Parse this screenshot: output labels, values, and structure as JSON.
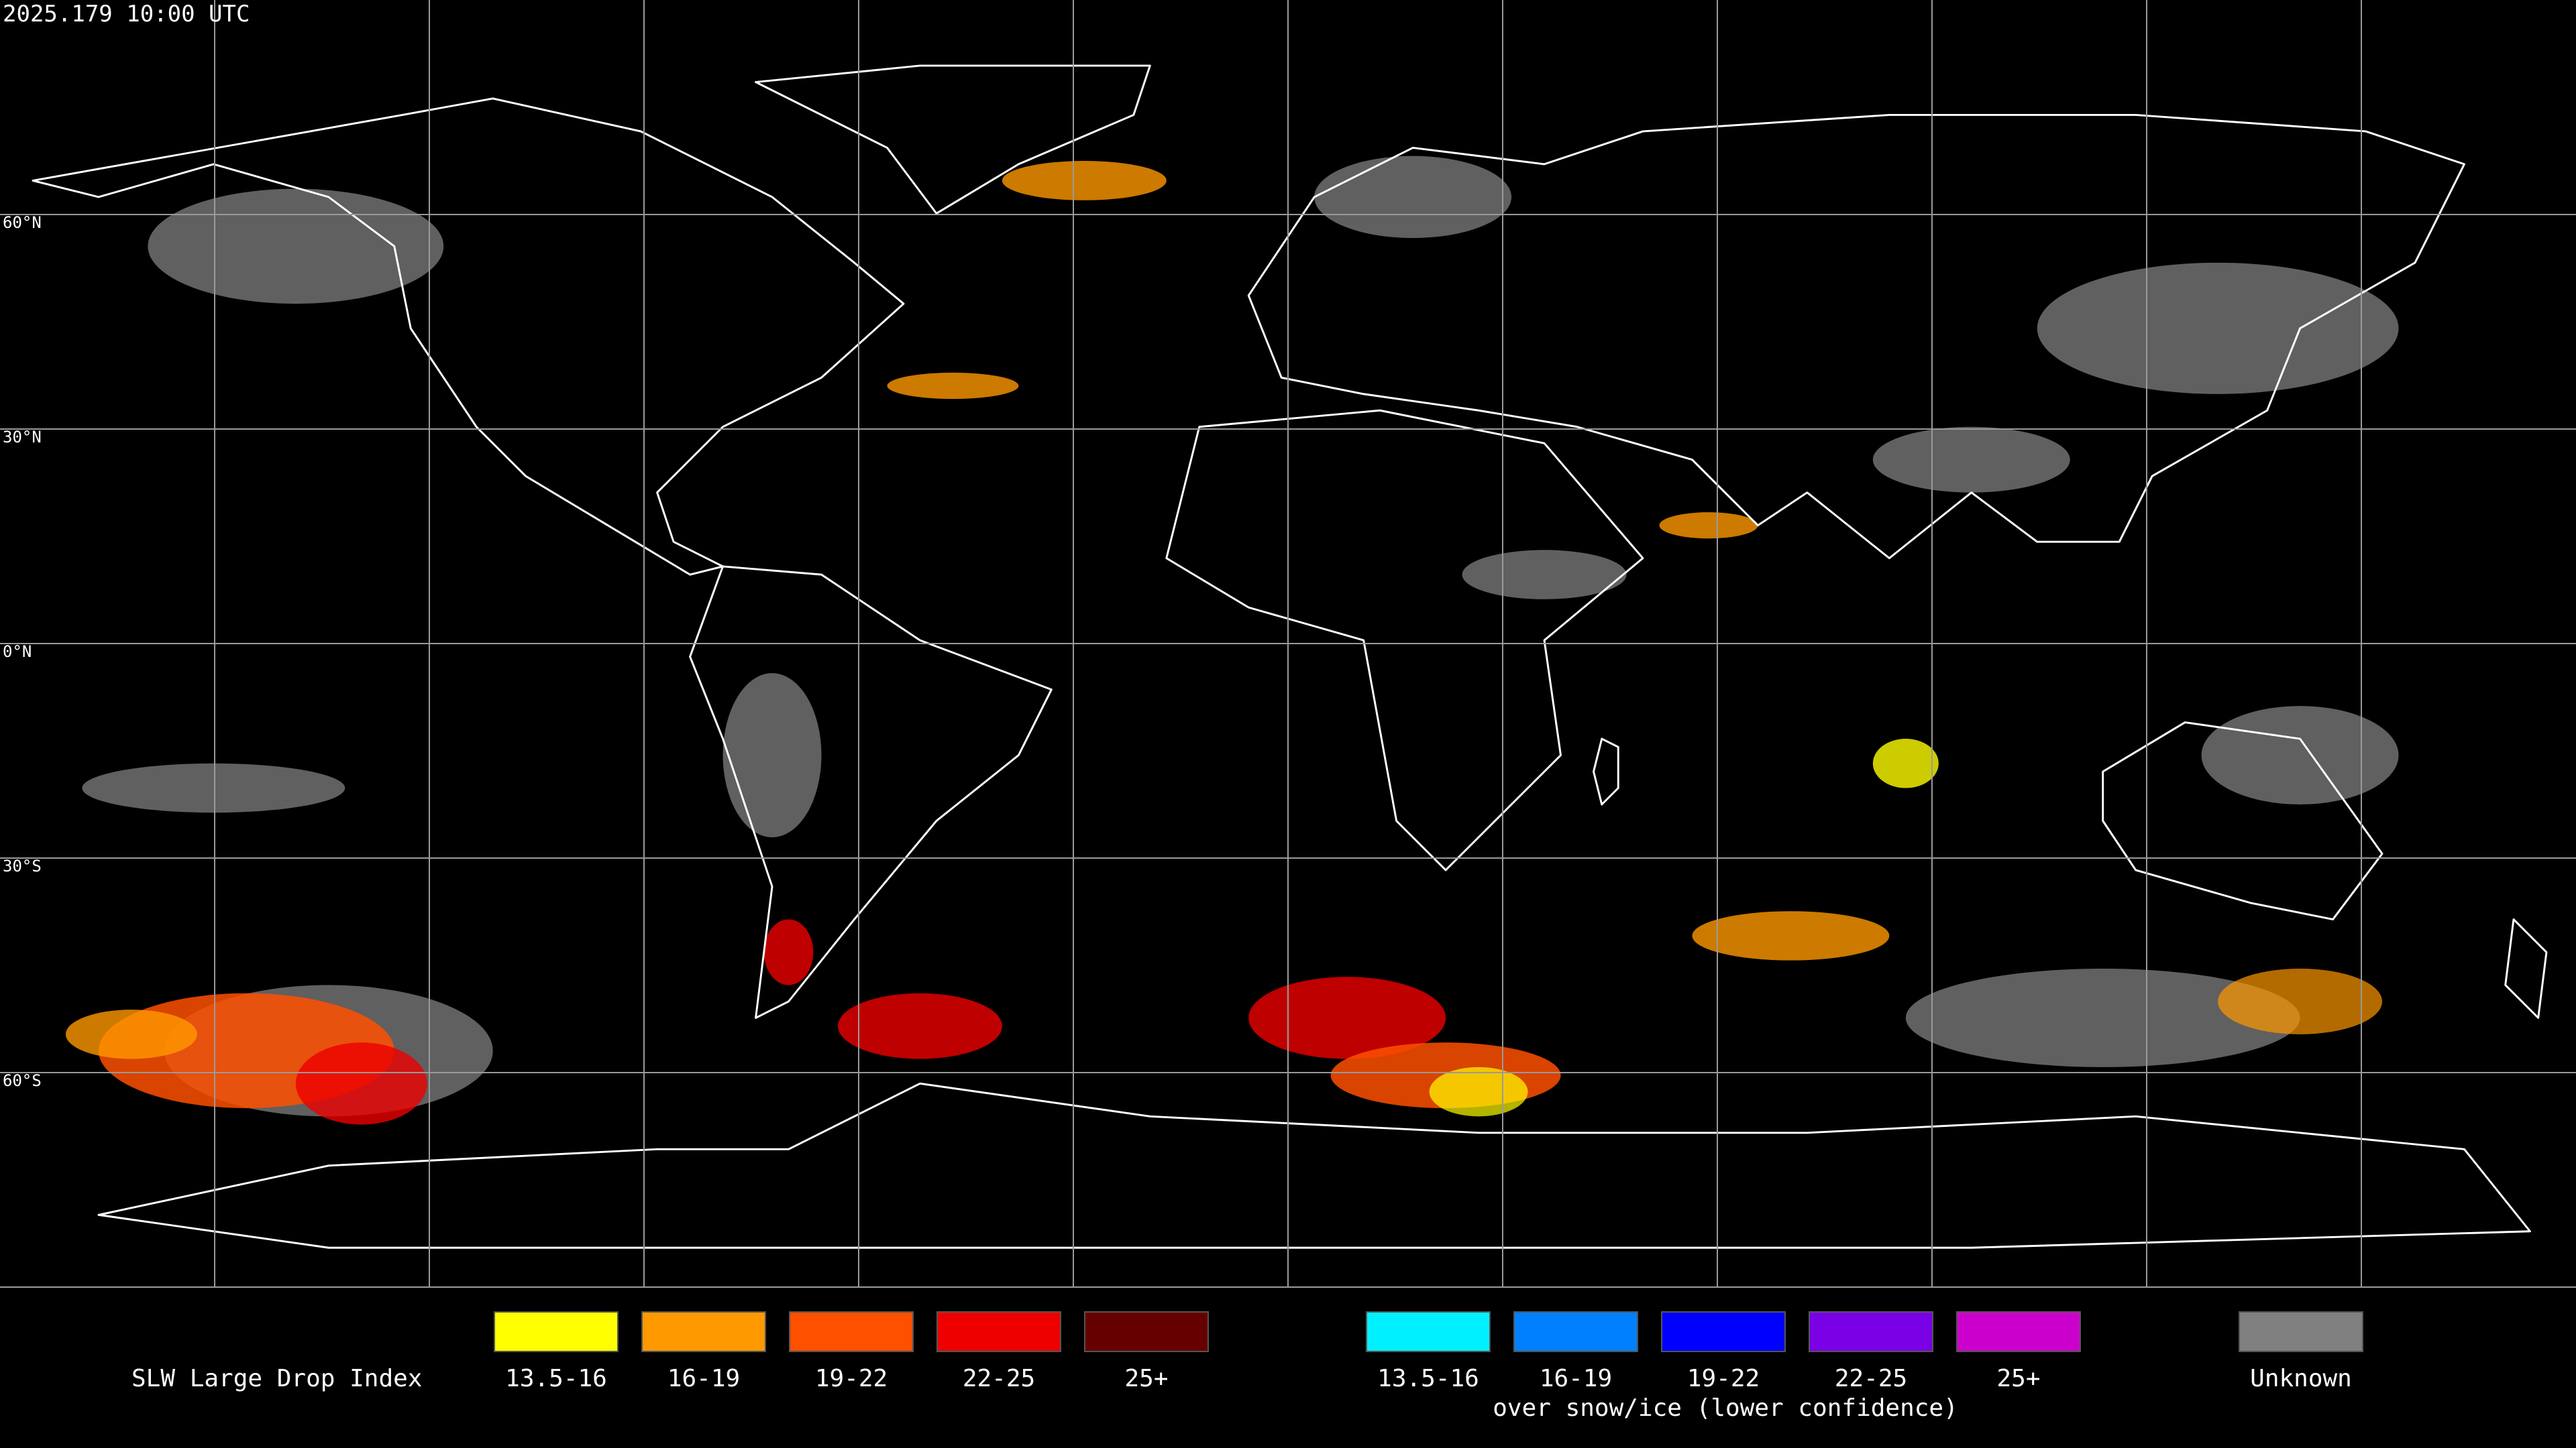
{
  "timestamp": "2025.179 10:00 UTC",
  "latitude_labels": [
    "60°N",
    "30°N",
    "0°N",
    "30°S",
    "60°S"
  ],
  "legend": {
    "title": "SLW Large Drop Index",
    "items": [
      {
        "label": "13.5-16",
        "color": "#ffff00"
      },
      {
        "label": "16-19",
        "color": "#ff9900"
      },
      {
        "label": "19-22",
        "color": "#ff5000"
      },
      {
        "label": "22-25",
        "color": "#ee0000"
      },
      {
        "label": "25+",
        "color": "#660000"
      }
    ],
    "snow_items": [
      {
        "label": "13.5-16",
        "color": "#00f0ff"
      },
      {
        "label": "16-19",
        "color": "#0080ff"
      },
      {
        "label": "19-22",
        "color": "#0000ff"
      },
      {
        "label": "22-25",
        "color": "#7a00e6"
      },
      {
        "label": "25+",
        "color": "#cc00cc"
      }
    ],
    "snow_caption": "over snow/ice (lower confidence)",
    "unknown": {
      "label": "Unknown",
      "color": "#808080"
    }
  }
}
